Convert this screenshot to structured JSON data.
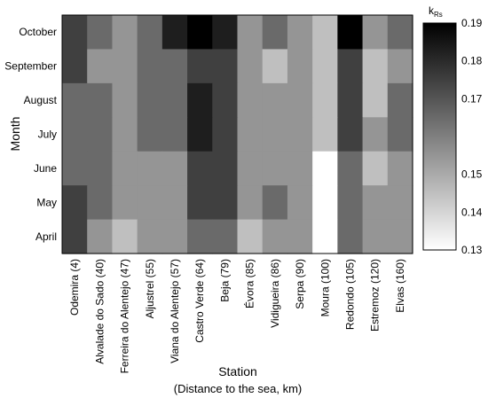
{
  "chart_data": {
    "type": "heatmap",
    "title": "",
    "xlabel": "Station",
    "xlabel_note": "(Distance to the sea, km)",
    "ylabel": "Month",
    "x_categories": [
      "Odemira (4)",
      "Alvalade do Sado (40)",
      "Ferreira do Alentejo (47)",
      "Aljustrel (55)",
      "Viana do Alentejo (57)",
      "Castro Verde (64)",
      "Beja (79)",
      "Évora (85)",
      "Vidigueira (86)",
      "Serpa (90)",
      "Moura (100)",
      "Redondo (105)",
      "Estremoz (120)",
      "Elvas (160)"
    ],
    "y_categories": [
      "October",
      "September",
      "August",
      "July",
      "June",
      "May",
      "April"
    ],
    "values": [
      [
        0.175,
        0.165,
        0.155,
        0.165,
        0.183,
        0.19,
        0.183,
        0.155,
        0.165,
        0.155,
        0.145,
        0.19,
        0.155,
        0.165
      ],
      [
        0.175,
        0.155,
        0.155,
        0.165,
        0.165,
        0.175,
        0.175,
        0.155,
        0.145,
        0.155,
        0.145,
        0.175,
        0.145,
        0.155
      ],
      [
        0.165,
        0.165,
        0.155,
        0.165,
        0.165,
        0.183,
        0.175,
        0.155,
        0.155,
        0.155,
        0.145,
        0.175,
        0.145,
        0.165
      ],
      [
        0.165,
        0.165,
        0.155,
        0.165,
        0.165,
        0.183,
        0.175,
        0.155,
        0.155,
        0.155,
        0.145,
        0.175,
        0.155,
        0.165
      ],
      [
        0.165,
        0.165,
        0.155,
        0.155,
        0.155,
        0.175,
        0.175,
        0.155,
        0.155,
        0.155,
        0.13,
        0.165,
        0.145,
        0.155
      ],
      [
        0.175,
        0.165,
        0.155,
        0.155,
        0.155,
        0.175,
        0.175,
        0.155,
        0.165,
        0.155,
        0.13,
        0.165,
        0.155,
        0.155
      ],
      [
        0.175,
        0.155,
        0.145,
        0.155,
        0.155,
        0.165,
        0.165,
        0.145,
        0.155,
        0.155,
        0.13,
        0.165,
        0.155,
        0.155
      ]
    ],
    "colorbar": {
      "label_main": "k",
      "label_sub": "Rs",
      "min": 0.13,
      "max": 0.19,
      "ticks": [
        "0.19",
        "0.18",
        "0.17",
        "0.15",
        "0.14",
        "0.13"
      ],
      "tick_values": [
        0.19,
        0.18,
        0.17,
        0.15,
        0.14,
        0.13
      ]
    },
    "colors": {
      "low": "#ffffff",
      "high": "#000000",
      "border": "#000000"
    },
    "grid": false,
    "legend": "colorbar-right"
  }
}
